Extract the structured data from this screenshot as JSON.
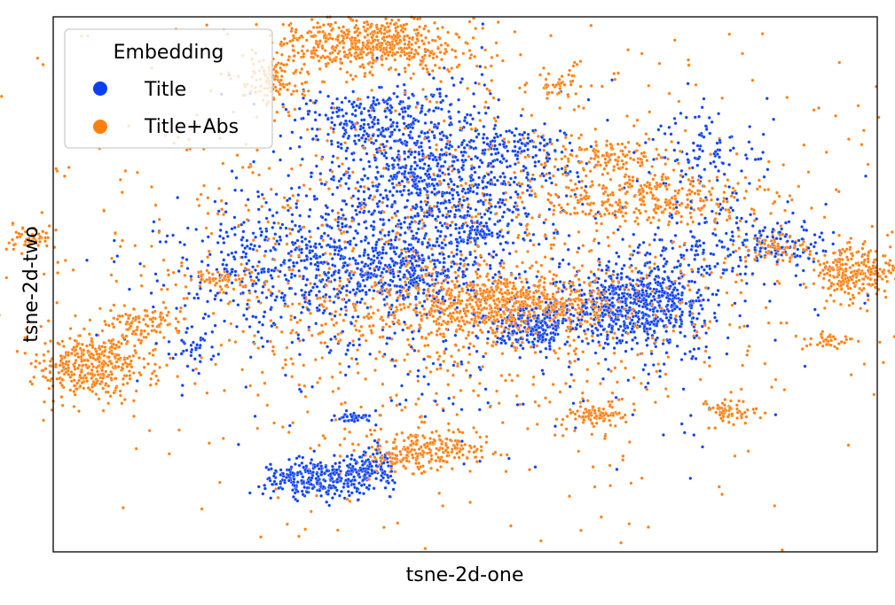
{
  "chart_data": {
    "type": "scatter",
    "title": "",
    "xlabel": "tsne-2d-one",
    "ylabel": "tsne-2d-two",
    "xlim": [
      -100,
      100
    ],
    "ylim": [
      -100,
      100
    ],
    "ticks_visible": false,
    "grid": false,
    "legend": {
      "title": "Embedding",
      "placement": "top-left",
      "entries": [
        "Title",
        "Title+Abs"
      ]
    },
    "series": [
      {
        "name": "Title",
        "color": "#0b3ff2",
        "clusters": [
          {
            "cx": -8,
            "cy": 40,
            "sx": 14,
            "sy": 16,
            "n": 900
          },
          {
            "cx": -26,
            "cy": 63,
            "sx": 9,
            "sy": 6,
            "n": 180
          },
          {
            "cx": -38,
            "cy": 8,
            "sx": 16,
            "sy": 12,
            "n": 500
          },
          {
            "cx": -16,
            "cy": 5,
            "sx": 9,
            "sy": 7,
            "n": 250
          },
          {
            "cx": 42,
            "cy": -8,
            "sx": 8,
            "sy": 8,
            "n": 650
          },
          {
            "cx": 17,
            "cy": -16,
            "sx": 5,
            "sy": 4,
            "n": 220
          },
          {
            "cx": -35,
            "cy": -73,
            "sx": 7,
            "sy": 3.5,
            "n": 300
          },
          {
            "cx": -23,
            "cy": -68,
            "sx": 3,
            "sy": 4,
            "n": 110
          },
          {
            "cx": -27,
            "cy": -50,
            "sx": 2,
            "sy": 1,
            "n": 40
          },
          {
            "cx": 62,
            "cy": 16,
            "sx": 10,
            "sy": 8,
            "n": 150
          },
          {
            "cx": 58,
            "cy": 50,
            "sx": 8,
            "sy": 8,
            "n": 100
          },
          {
            "cx": 12,
            "cy": 53,
            "sx": 5,
            "sy": 3,
            "n": 60
          },
          {
            "cx": 2,
            "cy": 18,
            "sx": 3,
            "sy": 2,
            "n": 50
          },
          {
            "cx": -66,
            "cy": -24,
            "sx": 3,
            "sy": 3,
            "n": 40
          },
          {
            "cx": 78,
            "cy": 14,
            "sx": 6,
            "sy": 4,
            "n": 70
          },
          {
            "cx": 0,
            "cy": 0,
            "sx": 38,
            "sy": 30,
            "n": 550
          }
        ]
      },
      {
        "name": "Title+Abs",
        "color": "#ff7f0e",
        "clusters": [
          {
            "cx": -23,
            "cy": 90,
            "sx": 11,
            "sy": 5,
            "n": 550
          },
          {
            "cx": -46,
            "cy": 76,
            "sx": 4,
            "sy": 4,
            "n": 120
          },
          {
            "cx": -90,
            "cy": -30,
            "sx": 7,
            "sy": 6,
            "n": 380
          },
          {
            "cx": -78,
            "cy": -15,
            "sx": 5,
            "sy": 4,
            "n": 100
          },
          {
            "cx": 12,
            "cy": -7,
            "sx": 12,
            "sy": 5,
            "n": 500
          },
          {
            "cx": 0,
            "cy": -10,
            "sx": 25,
            "sy": 8,
            "n": 350
          },
          {
            "cx": -10,
            "cy": -62,
            "sx": 7,
            "sy": 4,
            "n": 260
          },
          {
            "cx": 45,
            "cy": 33,
            "sx": 13,
            "sy": 5,
            "n": 300
          },
          {
            "cx": 35,
            "cy": 48,
            "sx": 7,
            "sy": 3,
            "n": 110
          },
          {
            "cx": 95,
            "cy": 5,
            "sx": 5,
            "sy": 5,
            "n": 250
          },
          {
            "cx": 32,
            "cy": -48,
            "sx": 3.5,
            "sy": 2.5,
            "n": 90
          },
          {
            "cx": 64,
            "cy": -48,
            "sx": 3,
            "sy": 2,
            "n": 60
          },
          {
            "cx": 75,
            "cy": 13,
            "sx": 4,
            "sy": 3,
            "n": 70
          },
          {
            "cx": -60,
            "cy": 2,
            "sx": 4,
            "sy": 2,
            "n": 60
          },
          {
            "cx": 88,
            "cy": -21,
            "sx": 3,
            "sy": 1.5,
            "n": 40
          },
          {
            "cx": 22,
            "cy": 74,
            "sx": 3,
            "sy": 2,
            "n": 40
          },
          {
            "cx": -118,
            "cy": -27,
            "sx": 2,
            "sy": 2,
            "n": 30
          },
          {
            "cx": -106,
            "cy": 18,
            "sx": 3,
            "sy": 2.5,
            "n": 50
          },
          {
            "cx": 0,
            "cy": 10,
            "sx": 48,
            "sy": 45,
            "n": 1300
          }
        ]
      }
    ]
  }
}
